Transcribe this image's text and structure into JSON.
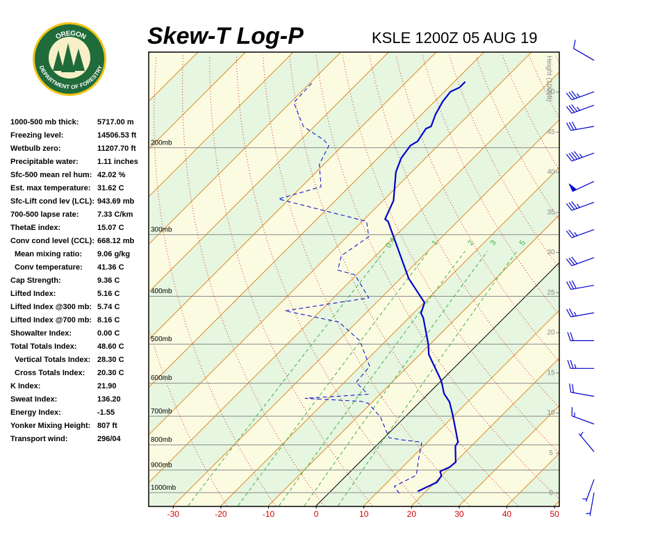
{
  "logo": {
    "top": "OREGON",
    "bottom": "DEPARTMENT OF FORESTRY"
  },
  "header": {
    "title": "Skew-T Log-P",
    "station": "KSLE 1200Z 05 AUG 19"
  },
  "indices": [
    {
      "label": "1000-500 mb thick:",
      "value": "5717.00 m"
    },
    {
      "label": "Freezing level:",
      "value": "14506.53 ft"
    },
    {
      "label": "Wetbulb zero:",
      "value": "11207.70 ft"
    },
    {
      "label": "Precipitable water:",
      "value": "1.11 inches"
    },
    {
      "label": "Sfc-500 mean rel hum:",
      "value": "42.02 %"
    },
    {
      "label": "Est. max temperature:",
      "value": "31.62 C"
    },
    {
      "label": "Sfc-Lift cond lev (LCL):",
      "value": "943.69 mb"
    },
    {
      "label": "700-500 lapse rate:",
      "value": "7.33 C/km"
    },
    {
      "label": "ThetaE index:",
      "value": "15.07 C"
    },
    {
      "label": "Conv cond level (CCL):",
      "value": "668.12 mb"
    },
    {
      "label": "Mean mixing ratio:",
      "value": "9.06 g/kg",
      "indent": true
    },
    {
      "label": "Conv temperature:",
      "value": "41.36 C",
      "indent": true
    },
    {
      "label": "Cap Strength:",
      "value": "9.36 C"
    },
    {
      "label": "Lifted Index:",
      "value": "5.16 C"
    },
    {
      "label": "Lifted Index @300 mb:",
      "value": "5.74 C"
    },
    {
      "label": "Lifted Index @700 mb:",
      "value": "8.16 C"
    },
    {
      "label": "Showalter Index:",
      "value": "0.00 C"
    },
    {
      "label": "Total Totals Index:",
      "value": "48.60 C"
    },
    {
      "label": "Vertical Totals Index:",
      "value": "28.30 C",
      "indent": true
    },
    {
      "label": "Cross Totals Index:",
      "value": "20.30 C",
      "indent": true
    },
    {
      "label": "K Index:",
      "value": "21.90"
    },
    {
      "label": "Sweat Index:",
      "value": "136.20"
    },
    {
      "label": "Energy Index:",
      "value": "-1.55"
    },
    {
      "label": "Yonker Mixing Height:",
      "value": "807 ft"
    },
    {
      "label": "Transport wind:",
      "value": "296/04"
    }
  ],
  "chart_data": {
    "type": "skew-t",
    "xlim": [
      -35,
      51
    ],
    "ylim": [
      1063,
      128
    ],
    "xticks": [
      -30,
      -20,
      -10,
      0,
      10,
      20,
      30,
      40,
      50
    ],
    "pressure_ticks": [
      {
        "value": 1000,
        "label": "1000mb"
      },
      {
        "value": 900,
        "label": "900mb"
      },
      {
        "value": 800,
        "label": "800mb"
      },
      {
        "value": 700,
        "label": "700mb"
      },
      {
        "value": 600,
        "label": "600mb"
      },
      {
        "value": 500,
        "label": "500mb"
      },
      {
        "value": 400,
        "label": "400mb"
      },
      {
        "value": 300,
        "label": "300mb"
      },
      {
        "value": 200,
        "label": "200mb"
      }
    ],
    "height_label": "Height (1000ft)",
    "height_ticks": [
      0,
      5,
      10,
      15,
      20,
      25,
      30,
      35,
      40,
      45,
      50
    ],
    "mixing_ratio_labels": [
      0.4,
      1,
      2,
      3,
      5
    ],
    "series": [
      {
        "color": "#0000cc",
        "width": 2.2,
        "dashed": false,
        "pressure": [
          994,
          953,
          925,
          905,
          887,
          867,
          805,
          790,
          696,
          655,
          630,
          594,
          525,
          500,
          442,
          433,
          412,
          368,
          282,
          279,
          256,
          224,
          210,
          198,
          194,
          183,
          181,
          171,
          161,
          154,
          151,
          147
        ],
        "values": [
          18.3,
          20.4,
          20.0,
          18.8,
          19.9,
          20.1,
          16.7,
          16.4,
          9.6,
          6.2,
          3.3,
          0.1,
          -8.1,
          -10.4,
          -17.0,
          -18.4,
          -19.9,
          -28.3,
          -44.6,
          -45.7,
          -47.8,
          -53.3,
          -55.1,
          -55.8,
          -55.2,
          -56.1,
          -55.5,
          -57.1,
          -58.3,
          -58.7,
          -57.7,
          -57.7
        ]
      },
      {
        "color": "#0000cc",
        "width": 1,
        "dashed": true,
        "pressure": [
          1003,
          971,
          956,
          922,
          853,
          790,
          782,
          774,
          703,
          659,
          653,
          644,
          632,
          598,
          555,
          492,
          451,
          428,
          403,
          362,
          354,
          331,
          303,
          282,
          254,
          240,
          216,
          198,
          193,
          181,
          162,
          147
        ],
        "values": [
          14.8,
          12.3,
          13.0,
          14.6,
          11.6,
          8.8,
          4.3,
          1.0,
          -5.1,
          -10.6,
          -12.5,
          -24.9,
          -12.5,
          -17.5,
          -18.0,
          -25.5,
          -33.8,
          -47.5,
          -32.6,
          -40.3,
          -44.9,
          -47.2,
          -45.4,
          -49.1,
          -72.3,
          -65.9,
          -71.0,
          -72.9,
          -75.1,
          -82.3,
          -89.3,
          -89.6
        ]
      }
    ],
    "winds": {
      "pressure": [
        133,
        154,
        164,
        181,
        205,
        234,
        258,
        293,
        334,
        380,
        432,
        492,
        560,
        638,
        726,
        826,
        940,
        1000
      ],
      "direction": [
        300,
        250,
        250,
        260,
        250,
        245,
        250,
        250,
        250,
        260,
        260,
        270,
        270,
        280,
        290,
        320,
        200,
        190
      ],
      "speed": [
        10,
        35,
        35,
        30,
        45,
        50,
        35,
        25,
        30,
        30,
        25,
        20,
        25,
        20,
        15,
        5,
        5,
        5
      ],
      "color": "#0000cc"
    }
  }
}
